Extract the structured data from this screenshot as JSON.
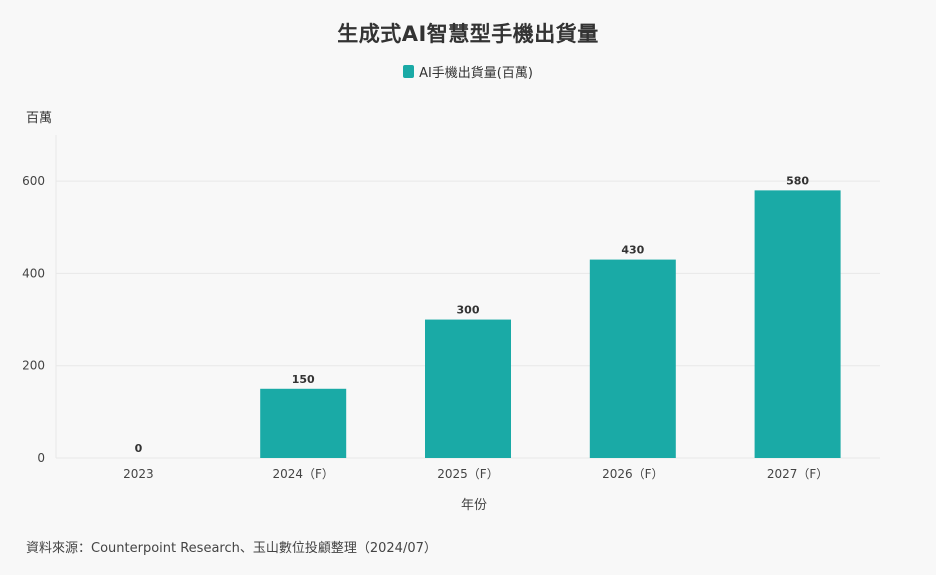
{
  "chart_data": {
    "type": "bar",
    "title": "生成式AI智慧型手機出貨量",
    "categories": [
      "2023",
      "2024（F）",
      "2025（F）",
      "2026（F）",
      "2027（F）"
    ],
    "series": [
      {
        "name": "AI手機出貨量(百萬)",
        "values": [
          0,
          150,
          300,
          430,
          580
        ],
        "color": "#1aaaa6"
      }
    ],
    "data_labels": [
      "0",
      "150",
      "300",
      "430",
      "580"
    ],
    "xlabel": "年份",
    "ylabel": "百萬",
    "ylim": [
      0,
      700
    ],
    "yticks": [
      0,
      200,
      400,
      600
    ],
    "ytick_labels": [
      "0",
      "200",
      "400",
      "600"
    ],
    "grid": true,
    "legend_position": "top-center"
  },
  "source_note": "資料來源：Counterpoint Research、玉山數位投顧整理（2024/07）",
  "colors": {
    "bar": "#1aaaa6",
    "grid": "#e8e8e8",
    "background": "#f8f8f8"
  }
}
